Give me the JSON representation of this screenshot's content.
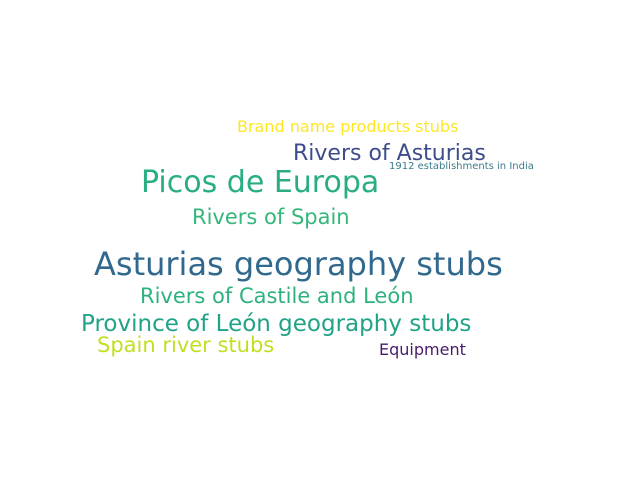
{
  "background": "#ffffff",
  "words": [
    {
      "text": "Brand name products stubs",
      "color": "#fde725"
    },
    {
      "text": "Rivers of Asturias",
      "color": "#3e4c8a"
    },
    {
      "text": "1912 establishments in India",
      "color": "#3b7c8c"
    },
    {
      "text": "Picos de Europa",
      "color": "#29ae80"
    },
    {
      "text": "Rivers of Spain",
      "color": "#35b779"
    },
    {
      "text": "Asturias geography stubs",
      "color": "#31688e"
    },
    {
      "text": "Rivers of Castile and León",
      "color": "#2db27d"
    },
    {
      "text": "Province of León geography stubs",
      "color": "#20a386"
    },
    {
      "text": "Spain river stubs",
      "color": "#c2df23"
    },
    {
      "text": "Equipment",
      "color": "#481b6d"
    }
  ]
}
